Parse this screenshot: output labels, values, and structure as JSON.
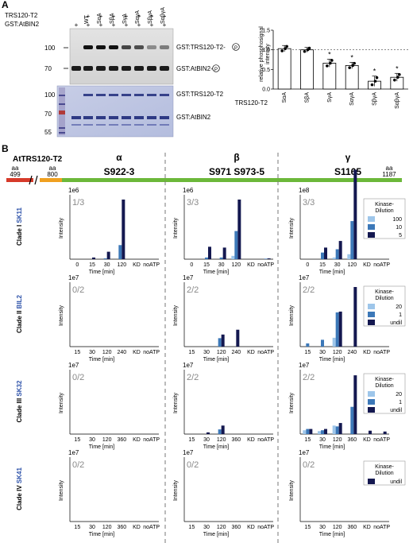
{
  "panel_a": {
    "letter": "A",
    "row_labels": [
      "TRS120-T2",
      "GST:AtBIN2"
    ],
    "lane_headers": [
      "WT",
      "SαA",
      "SβA",
      "SγA",
      "SαγA",
      "SβγA",
      "SαβγA"
    ],
    "lane_signs_trs": [
      "",
      "+",
      "+",
      "+",
      "+",
      "+",
      "+",
      "+"
    ],
    "lane_signs_bin": [
      "+",
      "+",
      "+",
      "+",
      "+",
      "+",
      "+",
      "+"
    ],
    "autorad_mw": [
      "100",
      "70"
    ],
    "autorad_labels": [
      "GST:TRS120-T2-",
      "GST:AtBIN2-"
    ],
    "phospho_mark": "P",
    "coomassie_mw": [
      "100",
      "70",
      "55"
    ],
    "coomassie_labels": [
      "GST:TRS120-T2",
      "GST:AtBIN2"
    ],
    "bar_chart": {
      "ylabel": "relative phosphosignal intensity",
      "yticks": [
        "0.0",
        "0.5",
        "1.0",
        "1.5"
      ],
      "xlabel": "TRS120-T2",
      "categories": [
        "SαA",
        "SβA",
        "SγA",
        "SαγA",
        "SβγA",
        "SαβγA"
      ],
      "values": [
        1.03,
        1.0,
        0.66,
        0.6,
        0.2,
        0.3
      ],
      "errors": [
        0.08,
        0.06,
        0.1,
        0.08,
        0.13,
        0.1
      ],
      "significance": [
        "",
        "",
        "*",
        "*",
        "*",
        "*"
      ],
      "star": "*"
    }
  },
  "panel_b": {
    "letter": "B",
    "protein": "AtTRS120-T2",
    "aa_label": "aa",
    "aa_start": "499",
    "aa_mid": "800",
    "aa_end": "1187",
    "greek": [
      "α",
      "β",
      "γ"
    ],
    "sites": [
      "S922-3",
      "S971 S973-5",
      "S1165"
    ],
    "time_label": "Time [min]",
    "intensity_label": "Intensity",
    "legend_title": [
      "Kinase-",
      "Dilution"
    ],
    "clades": [
      {
        "prefix": "Clade I ",
        "name": "SK11",
        "exp": "1e6",
        "fractions": [
          "1/3",
          "3/3",
          "3/3"
        ],
        "exps": [
          "1e6",
          "1e6",
          "1e8"
        ],
        "xticks": [
          "0",
          "15",
          "30",
          "120",
          "KD",
          "noATP"
        ],
        "legend": [
          "100",
          "10",
          "5"
        ]
      },
      {
        "prefix": "Clade II ",
        "name": "BIL2",
        "exp": "1e7",
        "fractions": [
          "0/2",
          "2/2",
          "2/2"
        ],
        "exps": [
          "1e7",
          "1e7",
          "1e7"
        ],
        "xticks": [
          "15",
          "30",
          "120",
          "240",
          "KD",
          "noATP"
        ],
        "legend": [
          "20",
          "1",
          "undil"
        ]
      },
      {
        "prefix": "Clade III ",
        "name": "SK32",
        "exp": "1e7",
        "fractions": [
          "0/2",
          "2/2",
          "2/2"
        ],
        "exps": [
          "1e7",
          "1e7",
          "1e7"
        ],
        "xticks": [
          "15",
          "30",
          "120",
          "360",
          "KD",
          "noATP"
        ],
        "legend": [
          "20",
          "1",
          "undil"
        ]
      },
      {
        "prefix": "Clade IV ",
        "name": "SK41",
        "exp": "1e7",
        "fractions": [
          "0/2",
          "0/2",
          "0/2"
        ],
        "exps": [
          "1e7",
          "1e7",
          "1e7"
        ],
        "xticks": [
          "15",
          "30",
          "120",
          "360",
          "KD",
          "noATP"
        ],
        "legend": [
          "undil"
        ]
      }
    ],
    "colors": {
      "light": "#9ec6ea",
      "mid": "#3c78b8",
      "dark": "#141850",
      "clade_name": "#2a4fa8",
      "frac": "#8a8a8a",
      "red": "#d63a2a",
      "orange": "#f0a020",
      "green": "#6cb83a"
    }
  },
  "chart_data": [
    {
      "type": "bar",
      "title": "",
      "xlabel": "TRS120-T2",
      "ylabel": "relative phosphosignal intensity",
      "categories": [
        "SαA",
        "SβA",
        "SγA",
        "SαγA",
        "SβγA",
        "SαβγA"
      ],
      "values": [
        1.03,
        1.0,
        0.66,
        0.6,
        0.2,
        0.3
      ],
      "ylim": [
        0,
        1.5
      ]
    },
    {
      "type": "bar",
      "panel": "Clade I SK11 α",
      "categories": [
        "0",
        "15",
        "30",
        "120",
        "KD",
        "noATP"
      ],
      "series": [
        {
          "name": "10",
          "values": [
            0,
            0,
            0.05,
            0.85,
            0,
            0
          ]
        },
        {
          "name": "5",
          "values": [
            0,
            0.1,
            0.45,
            3.6,
            0,
            0
          ]
        }
      ]
    },
    {
      "type": "bar",
      "panel": "Clade I SK11 β",
      "categories": [
        "0",
        "15",
        "30",
        "120",
        "KD",
        "noATP"
      ],
      "series": [
        {
          "name": "100",
          "values": [
            0,
            0,
            0,
            0.2,
            0,
            0
          ]
        },
        {
          "name": "10",
          "values": [
            0,
            0.1,
            0.1,
            1.7,
            0,
            0.03
          ]
        },
        {
          "name": "5",
          "values": [
            0,
            0.75,
            0.7,
            3.6,
            0,
            0.05
          ]
        }
      ]
    },
    {
      "type": "bar",
      "panel": "Clade I SK11 γ",
      "categories": [
        "0",
        "15",
        "30",
        "120",
        "KD",
        "noATP"
      ],
      "series": [
        {
          "name": "100",
          "values": [
            0,
            0,
            0.1,
            0.3,
            0,
            0
          ]
        },
        {
          "name": "10",
          "values": [
            0,
            0.4,
            0.6,
            2.3,
            0,
            0
          ]
        },
        {
          "name": "5",
          "values": [
            0,
            0.7,
            1.1,
            5.4,
            0,
            0
          ]
        }
      ]
    },
    {
      "type": "bar",
      "panel": "Clade II BIL2 β",
      "categories": [
        "15",
        "30",
        "120",
        "240",
        "KD",
        "noATP"
      ],
      "series": [
        {
          "name": "1",
          "values": [
            0,
            0,
            1.05,
            0,
            0,
            0
          ]
        },
        {
          "name": "undil",
          "values": [
            0,
            0,
            1.5,
            2.1,
            0,
            0
          ]
        }
      ]
    },
    {
      "type": "bar",
      "panel": "Clade II BIL2 γ",
      "categories": [
        "15",
        "30",
        "120",
        "240",
        "KD",
        "noATP"
      ],
      "series": [
        {
          "name": "20",
          "values": [
            0,
            0,
            1.1,
            0,
            0,
            0
          ]
        },
        {
          "name": "1",
          "values": [
            0.4,
            0.85,
            4.25,
            0,
            0,
            0
          ]
        },
        {
          "name": "undil",
          "values": [
            0,
            0,
            4.35,
            7.4,
            0,
            0
          ]
        }
      ]
    },
    {
      "type": "bar",
      "panel": "Clade III SK32 β",
      "categories": [
        "15",
        "30",
        "120",
        "360",
        "KD",
        "noATP"
      ],
      "series": [
        {
          "name": "1",
          "values": [
            0,
            0,
            0.55,
            0,
            0,
            0
          ]
        },
        {
          "name": "undil",
          "values": [
            0,
            0.2,
            1.0,
            0,
            0,
            0
          ]
        }
      ]
    },
    {
      "type": "bar",
      "panel": "Clade III SK32 γ",
      "categories": [
        "15",
        "30",
        "120",
        "360",
        "KD",
        "noATP"
      ],
      "series": [
        {
          "name": "20",
          "values": [
            0.45,
            0.35,
            1.0,
            0,
            0,
            0
          ]
        },
        {
          "name": "1",
          "values": [
            0.6,
            0.45,
            0.9,
            3.2,
            0,
            0
          ]
        },
        {
          "name": "undil",
          "values": [
            0.6,
            0.6,
            1.3,
            6.9,
            0.4,
            0.3
          ]
        }
      ]
    },
    {
      "type": "bar",
      "panel": "Clade IV SK41",
      "categories": [
        "15",
        "30",
        "120",
        "360",
        "KD",
        "noATP"
      ],
      "series": [
        {
          "name": "undil",
          "values": [
            0,
            0,
            0,
            0,
            0,
            0
          ]
        }
      ]
    }
  ]
}
